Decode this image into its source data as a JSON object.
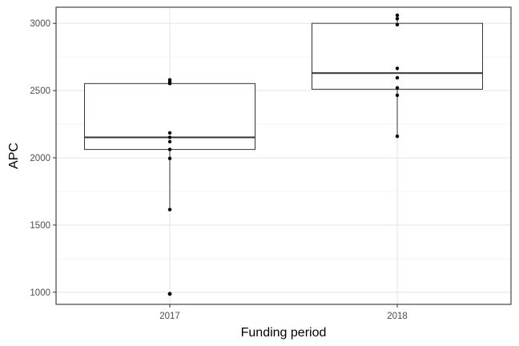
{
  "chart_data": {
    "type": "box",
    "xlabel": "Funding period",
    "ylabel": "APC",
    "ylim": [
      910,
      3120
    ],
    "y_ticks": [
      "1000",
      "1500",
      "2000",
      "2500",
      "3000"
    ],
    "y_minor_ticks": [
      1250,
      1750,
      2250,
      2750
    ],
    "categories": [
      "2017",
      "2018"
    ],
    "grid": true,
    "theme": "bw",
    "boxes": [
      {
        "category": "2017",
        "lower_whisker": 1615,
        "q1": 2062,
        "median": 2152,
        "q3": 2552,
        "upper_whisker": 2580,
        "outliers": [
          988
        ],
        "points": [
          988,
          1615,
          1995,
          2062,
          2120,
          2152,
          2185,
          2552,
          2565,
          2580
        ]
      },
      {
        "category": "2018",
        "lower_whisker": 2160,
        "q1": 2510,
        "median": 2630,
        "q3": 3000,
        "upper_whisker": 3060,
        "outliers": [],
        "points": [
          2160,
          2465,
          2520,
          2595,
          2665,
          2990,
          3035,
          3060
        ]
      }
    ]
  }
}
